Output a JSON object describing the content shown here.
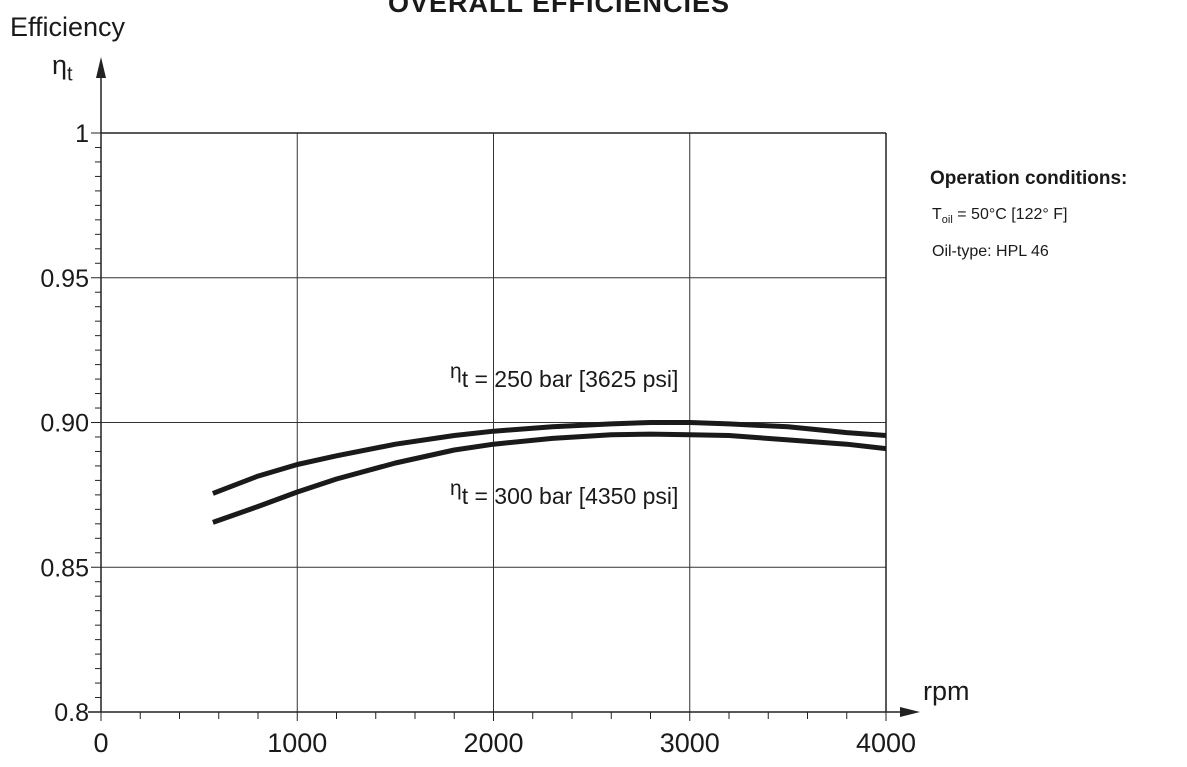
{
  "chart_data": {
    "type": "line",
    "title": "OVERALL EFFICIENCIES",
    "ylabel": "Efficiency",
    "y_symbol": "η",
    "y_symbol_sub": "t",
    "xlabel": "rpm",
    "xlim": [
      0,
      4000
    ],
    "ylim": [
      0.8,
      1.0
    ],
    "x_ticks": [
      "0",
      "1000",
      "2000",
      "3000",
      "4000"
    ],
    "y_ticks": [
      {
        "value": 0.8,
        "label": "0.8"
      },
      {
        "value": 0.85,
        "label": "0.85"
      },
      {
        "value": 0.9,
        "label": "0.90"
      },
      {
        "value": 0.95,
        "label": "0.95"
      },
      {
        "value": 1.0,
        "label": "1"
      }
    ],
    "grid": true,
    "series": [
      {
        "name": "= 250 bar [3625 psi]",
        "label_symbol": "η",
        "label_sub": "t",
        "x": [
          570,
          800,
          1000,
          1200,
          1500,
          1800,
          2000,
          2300,
          2600,
          2800,
          3000,
          3200,
          3500,
          3800,
          4000
        ],
        "y": [
          0.8755,
          0.8815,
          0.8855,
          0.8885,
          0.8925,
          0.8955,
          0.897,
          0.8985,
          0.8995,
          0.9,
          0.9,
          0.8995,
          0.8985,
          0.8965,
          0.8955
        ]
      },
      {
        "name": "= 300 bar [4350 psi]",
        "label_symbol": "η",
        "label_sub": "t",
        "x": [
          570,
          800,
          1000,
          1200,
          1500,
          1800,
          2000,
          2300,
          2600,
          2800,
          3000,
          3200,
          3500,
          3800,
          4000
        ],
        "y": [
          0.8655,
          0.871,
          0.876,
          0.8805,
          0.886,
          0.8905,
          0.8925,
          0.8945,
          0.8958,
          0.896,
          0.8958,
          0.8955,
          0.894,
          0.8925,
          0.891
        ]
      }
    ]
  },
  "conditions": {
    "heading": "Operation conditions:",
    "temp_symbol": "T",
    "temp_sub": "oil",
    "temp_text": "= 50°C [122° F]",
    "oil_type": "Oil-type: HPL 46"
  }
}
